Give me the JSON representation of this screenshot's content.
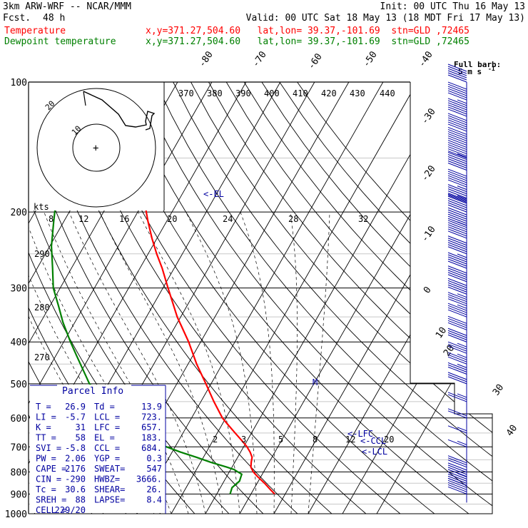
{
  "header": {
    "model": "3km ARW-WRF -- NCAR/MMM",
    "init_label": "Init: 00 UTC Thu 16 May 13",
    "fcst_label": "Fcst.",
    "fcst_value": "48 h",
    "valid_label": "Valid: 00 UTC Sat 18 May 13 (18 MDT Fri 17 May 13)",
    "temp_label": "Temperature",
    "temp_loc": "x,y=371.27,504.60   lat,lon= 39.37,-101.69  stn=GLD ,72465",
    "dew_label": "Dewpoint temperature",
    "dew_loc": "x,y=371.27,504.60   lat,lon= 39.37,-101.69  stn=GLD ,72465"
  },
  "colors": {
    "temperature": "#ff0000",
    "dewpoint": "#008000",
    "parcel_box": "#0000a0",
    "axes": "#000000"
  },
  "chart_data": {
    "type": "line",
    "pressure_axis": {
      "ticks": [
        100,
        200,
        300,
        400,
        500,
        600,
        700,
        800,
        900,
        1000
      ],
      "scale": "log"
    },
    "series": [
      {
        "name": "Temperature",
        "p": [
          900,
          880,
          850,
          820,
          800,
          780,
          760,
          740,
          720,
          700,
          680,
          650,
          620,
          600,
          550,
          500,
          450,
          400,
          350,
          300,
          270,
          250,
          230,
          210,
          200,
          190,
          175,
          160,
          150,
          140,
          130,
          120,
          110,
          100
        ],
        "t": [
          26.9,
          25.0,
          22.2,
          19.0,
          17.0,
          15.5,
          14.8,
          14.2,
          12.8,
          11.0,
          8.8,
          5.2,
          1.5,
          -1.0,
          -6.2,
          -11.5,
          -17.5,
          -23.5,
          -31.0,
          -38.5,
          -43.5,
          -47.5,
          -51.5,
          -55.5,
          -57.5,
          -59.5,
          -61.5,
          -63.0,
          -63.5,
          -65.0,
          -67.0,
          -69.0,
          -72.0,
          -75.5
        ]
      },
      {
        "name": "Dewpoint temperature",
        "p": [
          900,
          870,
          840,
          810,
          800,
          790,
          780,
          760,
          740,
          720,
          700,
          680,
          650,
          620,
          600,
          550,
          500,
          470,
          430,
          400,
          360,
          330,
          300,
          270,
          240,
          210,
          190,
          170,
          155,
          140,
          125,
          110,
          100
        ],
        "td": [
          13.9,
          13.4,
          14.5,
          14.0,
          12.5,
          11.0,
          8.5,
          3.0,
          -2.0,
          -7.5,
          -12.5,
          -17.5,
          -21.5,
          -24.5,
          -28.5,
          -36.5,
          -45.5,
          -49.0,
          -54.0,
          -58.0,
          -63.5,
          -67.5,
          -72.0,
          -75.5,
          -79.5,
          -83.0,
          -85.5,
          -87.5,
          -89.0,
          -90.5,
          -92.0,
          -93.5,
          -95.0
        ]
      }
    ],
    "isotherm_labels": [
      "-80",
      "-70",
      "-60",
      "-50",
      "-40",
      "-30",
      "-20",
      "-10",
      "0",
      "10",
      "20",
      "30",
      "40"
    ],
    "dry_adiabat_labels": [
      "370",
      "380",
      "390",
      "400",
      "410",
      "420",
      "430",
      "440",
      "290",
      "280",
      "270"
    ],
    "mixing_ratio_labels_top": [
      "8",
      "12",
      "16",
      "20",
      "24",
      "28",
      "32"
    ],
    "mixing_ratio_labels_low": [
      "2",
      "3",
      "5",
      "8",
      "12",
      "20"
    ],
    "kts_label": "kts",
    "levels": {
      "el": "<-EL",
      "lfc": "<-LFC",
      "lcl": "<-LCL",
      "ccl": "<-CCL",
      "m_marker": "M"
    },
    "wind_barb_legend": {
      "line1": "Full barb:",
      "line2": "5 m s",
      "sup": "-1"
    },
    "hodograph_ring_labels": [
      "10",
      "20"
    ],
    "wind_profile": [
      {
        "p": 100,
        "spd": 20
      },
      {
        "p": 110,
        "spd": 20
      },
      {
        "p": 120,
        "spd": 19
      },
      {
        "p": 130,
        "spd": 18
      },
      {
        "p": 140,
        "spd": 18
      },
      {
        "p": 150,
        "spd": 18
      },
      {
        "p": 160,
        "spd": 17
      },
      {
        "p": 175,
        "spd": 16
      },
      {
        "p": 190,
        "spd": 15
      },
      {
        "p": 200,
        "spd": 15
      },
      {
        "p": 215,
        "spd": 14
      },
      {
        "p": 230,
        "spd": 13
      },
      {
        "p": 250,
        "spd": 12
      },
      {
        "p": 270,
        "spd": 11
      },
      {
        "p": 290,
        "spd": 10
      },
      {
        "p": 310,
        "spd": 10
      },
      {
        "p": 330,
        "spd": 9
      },
      {
        "p": 350,
        "spd": 9
      },
      {
        "p": 375,
        "spd": 8
      },
      {
        "p": 400,
        "spd": 8
      },
      {
        "p": 425,
        "spd": 7
      },
      {
        "p": 450,
        "spd": 7
      },
      {
        "p": 475,
        "spd": 7
      },
      {
        "p": 500,
        "spd": 6
      },
      {
        "p": 550,
        "spd": 5
      },
      {
        "p": 600,
        "spd": 4
      },
      {
        "p": 650,
        "spd": 3
      },
      {
        "p": 700,
        "spd": 3
      },
      {
        "p": 780,
        "spd": 6
      },
      {
        "p": 820,
        "spd": 8
      },
      {
        "p": 860,
        "spd": 9
      },
      {
        "p": 900,
        "spd": 10
      }
    ]
  },
  "parcel_info": {
    "title": "Parcel Info",
    "rows": [
      [
        "T  =",
        "26.9",
        "Td =",
        "13.9"
      ],
      [
        "LI =",
        "-5.7",
        "LCL =",
        "723."
      ],
      [
        "K  =",
        "31",
        "LFC =",
        "657."
      ],
      [
        "TT =",
        "58",
        "EL =",
        "183."
      ],
      [
        "SVI =",
        "-5.8",
        "CCL =",
        "684."
      ],
      [
        "PW =",
        "2.06",
        "YGP =",
        "0.3"
      ],
      [
        "CAPE =",
        "2176",
        "SWEAT=",
        "547"
      ],
      [
        "CIN =",
        "-290",
        "HWBZ=",
        "3666."
      ],
      [
        "Tc =",
        "30.6",
        "SHEAR=",
        "26."
      ],
      [
        "SREH =",
        "88",
        "LAPSE=",
        "8.4"
      ],
      [
        "CELL =",
        "229/20",
        "",
        ""
      ]
    ]
  }
}
